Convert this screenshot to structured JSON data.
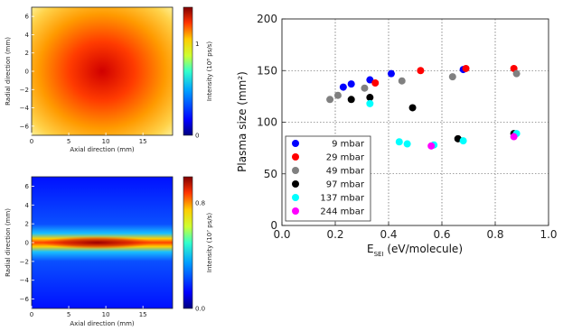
{
  "chart_data": [
    {
      "type": "heatmap",
      "panel": "top-left",
      "xlabel": "Axial direction (mm)",
      "ylabel": "Radial direction (mm)",
      "xticks": [
        "0",
        "5",
        "10",
        "15"
      ],
      "yticks": [
        "6",
        "4",
        "2",
        "0",
        "−2",
        "−4",
        "−6"
      ],
      "xlim": [
        0,
        19
      ],
      "ylim": [
        -7,
        7
      ],
      "colorbar": {
        "label": "Intensity (10⁸ ps/s)",
        "ticks": [
          "0",
          "1"
        ],
        "range": [
          0,
          1.4
        ]
      },
      "colors": [
        "#00007f",
        "#0000ff",
        "#00a0ff",
        "#33ffcc",
        "#ccff33",
        "#ffcc00",
        "#ff3300",
        "#bb0000",
        "#7f0000"
      ]
    },
    {
      "type": "heatmap",
      "panel": "bottom-left",
      "xlabel": "Axial direction (mm)",
      "ylabel": "Radial direction (mm)",
      "xticks": [
        "0",
        "5",
        "10",
        "15"
      ],
      "yticks": [
        "6",
        "4",
        "2",
        "0",
        "−2",
        "−4",
        "−6"
      ],
      "xlim": [
        0,
        19
      ],
      "ylim": [
        -7,
        7
      ],
      "colorbar": {
        "label": "Intensity (10⁷ ps/s)",
        "ticks": [
          "0.8",
          "0.0"
        ],
        "range": [
          0,
          1.0
        ]
      },
      "colors": [
        "#00007f",
        "#0000ff",
        "#00a0ff",
        "#33ffcc",
        "#ccff33",
        "#ffcc00",
        "#ff3300",
        "#bb0000",
        "#7f0000"
      ]
    },
    {
      "type": "scatter",
      "panel": "right",
      "xlabel_main": "E",
      "xlabel_sub": "SEI",
      "xlabel_rest": " (eV/molecule)",
      "ylabel": "Plasma size (mm²)",
      "xlim": [
        0,
        1.0
      ],
      "ylim": [
        0,
        200
      ],
      "xticks": [
        "0.0",
        "0.2",
        "0.4",
        "0.6",
        "0.8",
        "1.0"
      ],
      "yticks": [
        "0",
        "50",
        "100",
        "150",
        "200"
      ],
      "grid": true,
      "legend_position": "lower-left",
      "series": [
        {
          "name": "9 mbar",
          "color": "#0000ff",
          "x": [
            0.23,
            0.26,
            0.33,
            0.41,
            0.68
          ],
          "y": [
            134,
            137,
            141,
            147,
            151
          ]
        },
        {
          "name": "29 mbar",
          "color": "#ff0000",
          "x": [
            0.35,
            0.52,
            0.69,
            0.87
          ],
          "y": [
            138,
            150,
            152,
            152
          ]
        },
        {
          "name": "49 mbar",
          "color": "#808080",
          "x": [
            0.18,
            0.21,
            0.31,
            0.45,
            0.64,
            0.88
          ],
          "y": [
            122,
            126,
            133,
            140,
            144,
            147
          ]
        },
        {
          "name": "97 mbar",
          "color": "#000000",
          "x": [
            0.26,
            0.33,
            0.49,
            0.66,
            0.87
          ],
          "y": [
            122,
            124,
            114,
            84,
            89
          ]
        },
        {
          "name": "137 mbar",
          "color": "#00ffff",
          "x": [
            0.33,
            0.44,
            0.47,
            0.57,
            0.68,
            0.88
          ],
          "y": [
            118,
            81,
            79,
            78,
            82,
            89
          ]
        },
        {
          "name": "244 mbar",
          "color": "#ff00ff",
          "x": [
            0.56,
            0.87
          ],
          "y": [
            77,
            86
          ]
        }
      ]
    }
  ]
}
